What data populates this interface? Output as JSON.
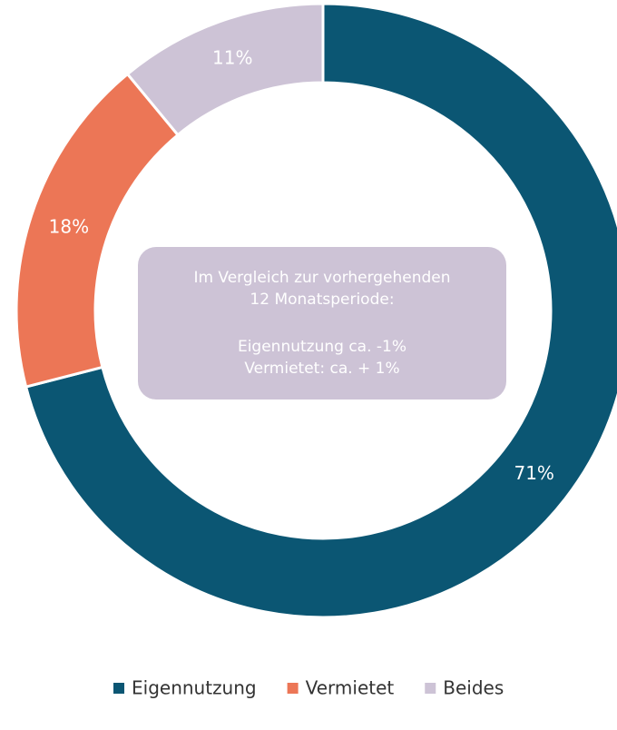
{
  "chart_data": {
    "type": "donut",
    "categories": [
      "Eigennutzung",
      "Vermietet",
      "Beides"
    ],
    "values": [
      71,
      18,
      11
    ],
    "value_labels": [
      "71%",
      "18%",
      "11%"
    ],
    "colors": [
      "#0b5673",
      "#ec7656",
      "#cdc3d6"
    ],
    "annotation": [
      "Im Vergleich zur vorhergehenden",
      "12 Monatsperiode:",
      "Eigennutzung ca. -1%",
      "Vermietet: ca. + 1%"
    ],
    "legend": "bottom"
  }
}
